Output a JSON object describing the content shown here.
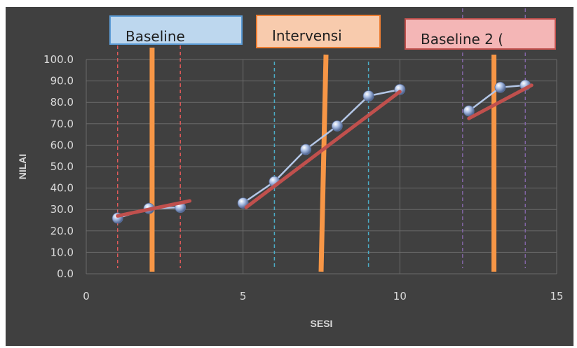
{
  "chart_data": {
    "type": "scatter",
    "xlabel": "SESI",
    "ylabel": "NILAI",
    "xlim": [
      0,
      15
    ],
    "ylim": [
      0,
      100
    ],
    "x_ticks": [
      "0",
      "5",
      "10",
      "15"
    ],
    "y_ticks": [
      "0.0",
      "10.0",
      "20.0",
      "30.0",
      "40.0",
      "50.0",
      "60.0",
      "70.0",
      "80.0",
      "90.0",
      "100.0"
    ],
    "grid": true,
    "background_color": "#404040",
    "phases": [
      {
        "label": "Baseline",
        "label_fill": "#bdd7ee",
        "label_stroke": "#5b9bd5",
        "points": [
          {
            "x": 1,
            "y": 26
          },
          {
            "x": 2,
            "y": 30.5
          },
          {
            "x": 3,
            "y": 31
          }
        ],
        "trend": {
          "x1": 1,
          "y1": 27,
          "x2": 3.3,
          "y2": 34
        },
        "bounds": {
          "x": [
            1,
            3
          ],
          "color": "#e05a5a"
        }
      },
      {
        "label": "Intervensi",
        "label_fill": "#f8cbad",
        "label_stroke": "#ed7d31",
        "points": [
          {
            "x": 5,
            "y": 33
          },
          {
            "x": 6,
            "y": 43
          },
          {
            "x": 7,
            "y": 58
          },
          {
            "x": 8,
            "y": 69
          },
          {
            "x": 9,
            "y": 83
          },
          {
            "x": 10,
            "y": 86
          }
        ],
        "trend": {
          "x1": 5.1,
          "y1": 31,
          "x2": 10,
          "y2": 85
        },
        "bounds": {
          "x": [
            6,
            9
          ],
          "color": "#4bacc6"
        }
      },
      {
        "label": "Baseline 2 (",
        "label_fill": "#f4b6b6",
        "label_stroke": "#c0504d",
        "points": [
          {
            "x": 12.2,
            "y": 76
          },
          {
            "x": 13.2,
            "y": 87
          },
          {
            "x": 14,
            "y": 88
          }
        ],
        "trend": {
          "x1": 12.2,
          "y1": 72.5,
          "x2": 14.2,
          "y2": 88
        },
        "bounds": {
          "x": [
            12,
            14
          ],
          "color": "#8064a2"
        }
      }
    ],
    "phase_change_lines": [
      {
        "x": 2.1
      },
      {
        "x": 7.5
      },
      {
        "x": 13
      }
    ],
    "colors": {
      "series_line": "#b4c7e7",
      "marker": "#8fa9d8",
      "trend": "#c0504d",
      "phase_change": "#f79646"
    }
  }
}
